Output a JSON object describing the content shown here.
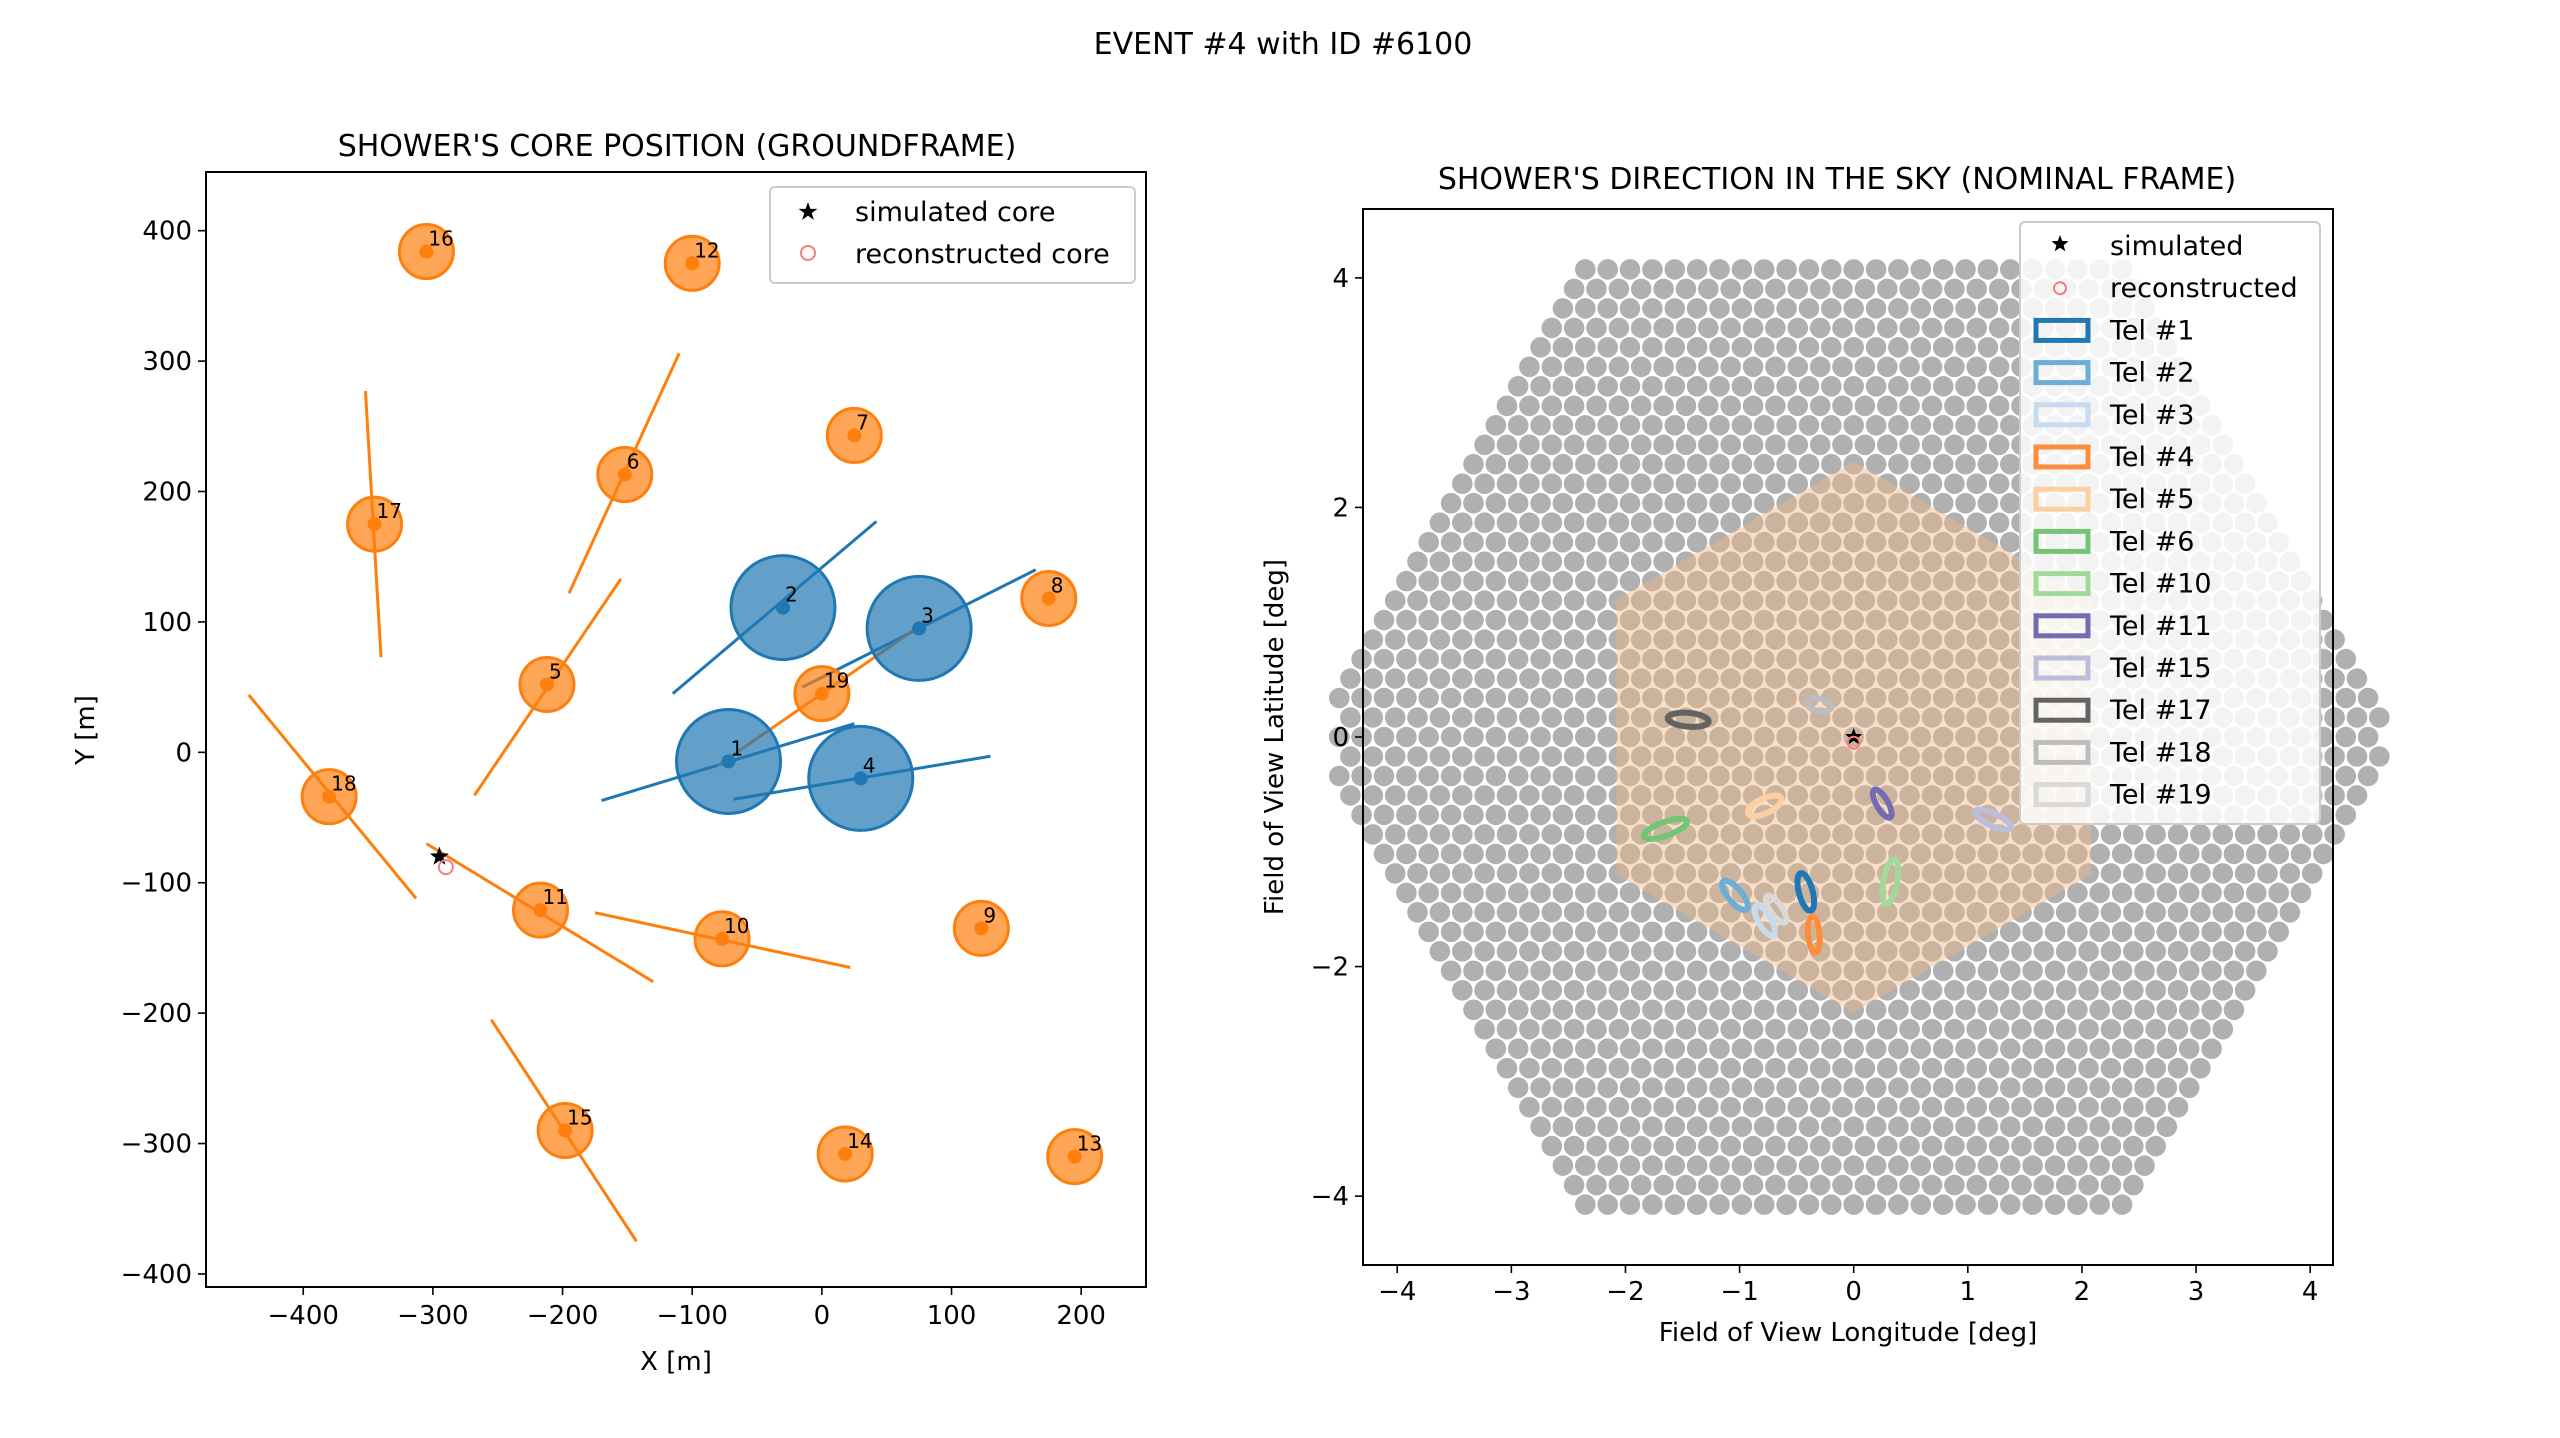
{
  "suptitle": "EVENT #4 with ID #6100",
  "chart_data": [
    {
      "type": "scatter",
      "title": "SHOWER'S CORE POSITION (GROUNDFRAME)",
      "xlabel": "X [m]",
      "ylabel": "Y [m]",
      "xlim": [
        -475,
        250
      ],
      "ylim": [
        -410,
        445
      ],
      "xticks": [
        -400,
        -300,
        -200,
        -100,
        0,
        100,
        200
      ],
      "yticks": [
        -400,
        -300,
        -200,
        -100,
        0,
        100,
        200,
        300,
        400
      ],
      "grid": false,
      "legend_position": "top-right",
      "legend": [
        {
          "label": "simulated core",
          "marker": "star",
          "color": "#000000"
        },
        {
          "label": "reconstructed core",
          "marker": "open-circle",
          "color": "#f08080"
        }
      ],
      "simulated_core": {
        "x": -295,
        "y": -80
      },
      "reconstructed_core": {
        "x": -290,
        "y": -88
      },
      "colors": {
        "triggered_large": "#1f77b4",
        "triggered": "#ff7f0e"
      },
      "telescopes": [
        {
          "id": "1",
          "x": -72,
          "y": -7,
          "group": "large",
          "line": [
            [
              -170,
              -37
            ],
            [
              25,
              22
            ]
          ]
        },
        {
          "id": "2",
          "x": -30,
          "y": 111,
          "group": "large",
          "line": [
            [
              -115,
              45
            ],
            [
              42,
              177
            ]
          ]
        },
        {
          "id": "3",
          "x": 75,
          "y": 95,
          "group": "large",
          "line": [
            [
              -15,
              50
            ],
            [
              165,
              140
            ]
          ]
        },
        {
          "id": "4",
          "x": 30,
          "y": -20,
          "group": "large",
          "line": [
            [
              -68,
              -36
            ],
            [
              130,
              -3
            ]
          ]
        },
        {
          "id": "5",
          "x": -212,
          "y": 52,
          "group": "small",
          "line": [
            [
              -268,
              -33
            ],
            [
              -155,
              133
            ]
          ]
        },
        {
          "id": "6",
          "x": -152,
          "y": 213,
          "group": "small",
          "line": [
            [
              -195,
              122
            ],
            [
              -110,
              306
            ]
          ]
        },
        {
          "id": "7",
          "x": 25,
          "y": 243,
          "group": "small",
          "line": null
        },
        {
          "id": "8",
          "x": 175,
          "y": 118,
          "group": "small",
          "line": null
        },
        {
          "id": "9",
          "x": 123,
          "y": -135,
          "group": "small",
          "line": null
        },
        {
          "id": "10",
          "x": -77,
          "y": -143,
          "group": "small",
          "line": [
            [
              -175,
              -123
            ],
            [
              22,
              -165
            ]
          ]
        },
        {
          "id": "11",
          "x": -217,
          "y": -121,
          "group": "small",
          "line": [
            [
              -305,
              -70
            ],
            [
              -130,
              -176
            ]
          ]
        },
        {
          "id": "12",
          "x": -100,
          "y": 375,
          "group": "small",
          "line": null
        },
        {
          "id": "13",
          "x": 195,
          "y": -310,
          "group": "small",
          "line": null
        },
        {
          "id": "14",
          "x": 18,
          "y": -308,
          "group": "small",
          "line": null
        },
        {
          "id": "15",
          "x": -198,
          "y": -290,
          "group": "small",
          "line": [
            [
              -255,
              -205
            ],
            [
              -143,
              -375
            ]
          ]
        },
        {
          "id": "16",
          "x": -305,
          "y": 384,
          "group": "small",
          "line": null
        },
        {
          "id": "17",
          "x": -345,
          "y": 175,
          "group": "small",
          "line": [
            [
              -352,
              277
            ],
            [
              -340,
              73
            ]
          ]
        },
        {
          "id": "18",
          "x": -380,
          "y": -34,
          "group": "small",
          "line": [
            [
              -442,
              44
            ],
            [
              -313,
              -112
            ]
          ]
        },
        {
          "id": "19",
          "x": 0,
          "y": 45,
          "group": "small",
          "line": [
            [
              -80,
              -10
            ],
            [
              80,
              100
            ]
          ]
        }
      ]
    },
    {
      "type": "scatter",
      "title": "SHOWER'S DIRECTION IN THE SKY (NOMINAL FRAME)",
      "xlabel": "Field of View Longitude [deg]",
      "ylabel": "Field of View Latitude [deg]",
      "xlim": [
        -4.3,
        4.2
      ],
      "ylim": [
        -4.6,
        4.6
      ],
      "xticks": [
        -4,
        -3,
        -2,
        -1,
        0,
        1,
        2,
        3,
        4
      ],
      "yticks": [
        -4,
        -2,
        0,
        2,
        4
      ],
      "grid": false,
      "legend_position": "top-right",
      "camera_pixel_color": "#b0b0b0",
      "inner_camera_color": "#f0b888",
      "simulated": {
        "x": 0.0,
        "y": 0.0
      },
      "reconstructed": {
        "x": 0.0,
        "y": -0.05
      },
      "legend": [
        {
          "label": "simulated",
          "marker": "star",
          "color": "#000000"
        },
        {
          "label": "reconstructed",
          "marker": "open-circle",
          "color": "#f08080"
        },
        {
          "label": "Tel #1",
          "color": "#1f77b4"
        },
        {
          "label": "Tel #2",
          "color": "#6baed6"
        },
        {
          "label": "Tel #3",
          "color": "#c6dbef"
        },
        {
          "label": "Tel #4",
          "color": "#fd8d3c"
        },
        {
          "label": "Tel #5",
          "color": "#fdd0a2"
        },
        {
          "label": "Tel #6",
          "color": "#74c476"
        },
        {
          "label": "Tel #10",
          "color": "#a1d99b"
        },
        {
          "label": "Tel #11",
          "color": "#756bb1"
        },
        {
          "label": "Tel #15",
          "color": "#bcbddc"
        },
        {
          "label": "Tel #17",
          "color": "#636363"
        },
        {
          "label": "Tel #18",
          "color": "#bdbdbd"
        },
        {
          "label": "Tel #19",
          "color": "#d9d9d9"
        }
      ],
      "ellipses": [
        {
          "tel": "Tel #1",
          "x": -0.42,
          "y": -1.35,
          "w": 0.34,
          "h": 0.12,
          "angle": -75,
          "color": "#1f77b4"
        },
        {
          "tel": "Tel #2",
          "x": -1.04,
          "y": -1.38,
          "w": 0.32,
          "h": 0.12,
          "angle": -50,
          "color": "#6baed6"
        },
        {
          "tel": "Tel #3",
          "x": -0.78,
          "y": -1.6,
          "w": 0.3,
          "h": 0.11,
          "angle": -60,
          "color": "#c6dbef"
        },
        {
          "tel": "Tel #4",
          "x": -0.35,
          "y": -1.72,
          "w": 0.32,
          "h": 0.1,
          "angle": -85,
          "color": "#fd8d3c"
        },
        {
          "tel": "Tel #5",
          "x": -0.78,
          "y": -0.6,
          "w": 0.32,
          "h": 0.13,
          "angle": 25,
          "color": "#fdd0a2"
        },
        {
          "tel": "Tel #6",
          "x": -1.65,
          "y": -0.8,
          "w": 0.4,
          "h": 0.12,
          "angle": 20,
          "color": "#74c476"
        },
        {
          "tel": "Tel #10",
          "x": 0.32,
          "y": -1.26,
          "w": 0.4,
          "h": 0.12,
          "angle": 80,
          "color": "#a1d99b"
        },
        {
          "tel": "Tel #11",
          "x": 0.25,
          "y": -0.58,
          "w": 0.28,
          "h": 0.1,
          "angle": -60,
          "color": "#756bb1"
        },
        {
          "tel": "Tel #15",
          "x": 1.22,
          "y": -0.72,
          "w": 0.34,
          "h": 0.11,
          "angle": -25,
          "color": "#bcbddc"
        },
        {
          "tel": "Tel #17",
          "x": -1.45,
          "y": 0.15,
          "w": 0.36,
          "h": 0.12,
          "angle": -5,
          "color": "#636363"
        },
        {
          "tel": "Tel #18",
          "x": -0.3,
          "y": 0.28,
          "w": 0.22,
          "h": 0.11,
          "angle": -10,
          "color": "#bdbdbd"
        },
        {
          "tel": "Tel #19",
          "x": -0.68,
          "y": -1.5,
          "w": 0.28,
          "h": 0.1,
          "angle": -55,
          "color": "#d9d9d9"
        }
      ]
    }
  ]
}
